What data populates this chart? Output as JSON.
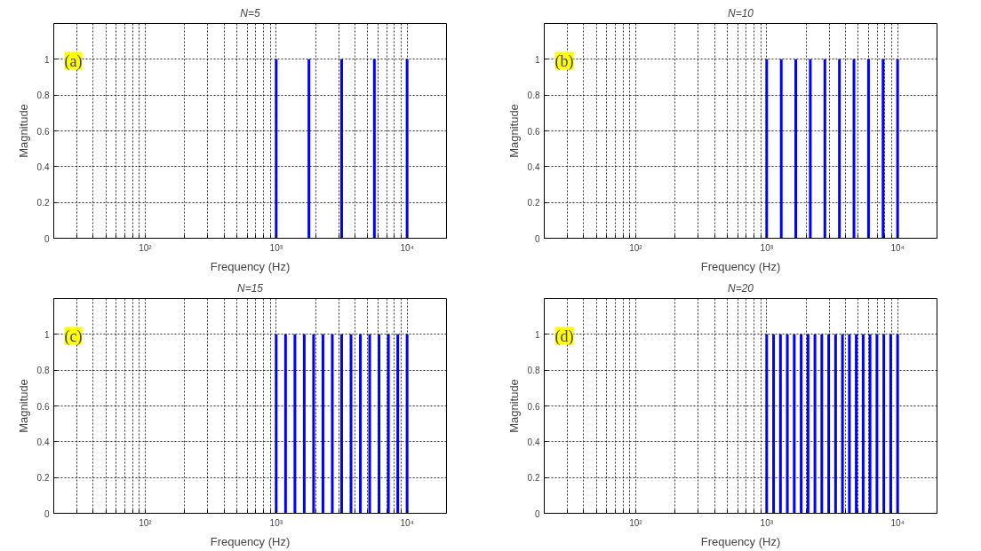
{
  "chart_data": [
    {
      "type": "bar",
      "title": "N=5",
      "xlabel": "Frequency (Hz)",
      "ylabel": "Magnitude",
      "annotations": [
        "(a)"
      ],
      "log": "x",
      "grid": true,
      "xlim": [
        20,
        20000
      ],
      "ylim": [
        0,
        1.2
      ],
      "color": "#0000ff",
      "xticks": [
        {
          "value": 20,
          "label": null
        },
        {
          "value": 30,
          "label": null
        },
        {
          "value": 40,
          "label": null
        },
        {
          "value": 50,
          "label": null
        },
        {
          "value": 60,
          "label": null
        },
        {
          "value": 70,
          "label": null
        },
        {
          "value": 80,
          "label": null
        },
        {
          "value": 90,
          "label": null
        },
        {
          "value": 100,
          "label": "10²"
        },
        {
          "value": 200,
          "label": null
        },
        {
          "value": 300,
          "label": null
        },
        {
          "value": 400,
          "label": null
        },
        {
          "value": 500,
          "label": null
        },
        {
          "value": 600,
          "label": null
        },
        {
          "value": 700,
          "label": null
        },
        {
          "value": 800,
          "label": null
        },
        {
          "value": 900,
          "label": null
        },
        {
          "value": 1000,
          "label": "10³"
        },
        {
          "value": 2000,
          "label": null
        },
        {
          "value": 3000,
          "label": null
        },
        {
          "value": 4000,
          "label": null
        },
        {
          "value": 5000,
          "label": null
        },
        {
          "value": 6000,
          "label": null
        },
        {
          "value": 7000,
          "label": null
        },
        {
          "value": 8000,
          "label": null
        },
        {
          "value": 9000,
          "label": null
        },
        {
          "value": 10000,
          "label": "10⁴"
        }
      ],
      "yticks": [
        0,
        0.2,
        0.4,
        0.6,
        0.8,
        1
      ],
      "x": [
        1000,
        1778,
        3162,
        5623,
        10000
      ],
      "values": [
        1,
        1,
        1,
        1,
        1
      ]
    },
    {
      "type": "bar",
      "title": "N=10",
      "xlabel": "Frequency (Hz)",
      "ylabel": "Magnitude",
      "annotations": [
        "(b)"
      ],
      "log": "x",
      "grid": true,
      "xlim": [
        20,
        20000
      ],
      "ylim": [
        0,
        1.2
      ],
      "color": "#0000ff",
      "xticks": [
        {
          "value": 20,
          "label": null
        },
        {
          "value": 30,
          "label": null
        },
        {
          "value": 40,
          "label": null
        },
        {
          "value": 50,
          "label": null
        },
        {
          "value": 60,
          "label": null
        },
        {
          "value": 70,
          "label": null
        },
        {
          "value": 80,
          "label": null
        },
        {
          "value": 90,
          "label": null
        },
        {
          "value": 100,
          "label": "10²"
        },
        {
          "value": 200,
          "label": null
        },
        {
          "value": 300,
          "label": null
        },
        {
          "value": 400,
          "label": null
        },
        {
          "value": 500,
          "label": null
        },
        {
          "value": 600,
          "label": null
        },
        {
          "value": 700,
          "label": null
        },
        {
          "value": 800,
          "label": null
        },
        {
          "value": 900,
          "label": null
        },
        {
          "value": 1000,
          "label": "10³"
        },
        {
          "value": 2000,
          "label": null
        },
        {
          "value": 3000,
          "label": null
        },
        {
          "value": 4000,
          "label": null
        },
        {
          "value": 5000,
          "label": null
        },
        {
          "value": 6000,
          "label": null
        },
        {
          "value": 7000,
          "label": null
        },
        {
          "value": 8000,
          "label": null
        },
        {
          "value": 9000,
          "label": null
        },
        {
          "value": 10000,
          "label": "10⁴"
        }
      ],
      "yticks": [
        0,
        0.2,
        0.4,
        0.6,
        0.8,
        1
      ],
      "x": [
        1000,
        1292,
        1668,
        2154,
        2783,
        3594,
        4642,
        5995,
        7743,
        10000
      ],
      "values": [
        1,
        1,
        1,
        1,
        1,
        1,
        1,
        1,
        1,
        1
      ]
    },
    {
      "type": "bar",
      "title": "N=15",
      "xlabel": "Frequency (Hz)",
      "ylabel": "Magnitude",
      "annotations": [
        "(c)"
      ],
      "log": "x",
      "grid": true,
      "xlim": [
        20,
        20000
      ],
      "ylim": [
        0,
        1.2
      ],
      "color": "#0000ff",
      "xticks": [
        {
          "value": 20,
          "label": null
        },
        {
          "value": 30,
          "label": null
        },
        {
          "value": 40,
          "label": null
        },
        {
          "value": 50,
          "label": null
        },
        {
          "value": 60,
          "label": null
        },
        {
          "value": 70,
          "label": null
        },
        {
          "value": 80,
          "label": null
        },
        {
          "value": 90,
          "label": null
        },
        {
          "value": 100,
          "label": "10²"
        },
        {
          "value": 200,
          "label": null
        },
        {
          "value": 300,
          "label": null
        },
        {
          "value": 400,
          "label": null
        },
        {
          "value": 500,
          "label": null
        },
        {
          "value": 600,
          "label": null
        },
        {
          "value": 700,
          "label": null
        },
        {
          "value": 800,
          "label": null
        },
        {
          "value": 900,
          "label": null
        },
        {
          "value": 1000,
          "label": "10³"
        },
        {
          "value": 2000,
          "label": null
        },
        {
          "value": 3000,
          "label": null
        },
        {
          "value": 4000,
          "label": null
        },
        {
          "value": 5000,
          "label": null
        },
        {
          "value": 6000,
          "label": null
        },
        {
          "value": 7000,
          "label": null
        },
        {
          "value": 8000,
          "label": null
        },
        {
          "value": 9000,
          "label": null
        },
        {
          "value": 10000,
          "label": "10⁴"
        }
      ],
      "yticks": [
        0,
        0.2,
        0.4,
        0.6,
        0.8,
        1
      ],
      "x": [
        1000,
        1179,
        1390,
        1638,
        1931,
        2276,
        2683,
        3162,
        3728,
        4394,
        5179,
        6105,
        7197,
        8483,
        10000
      ],
      "values": [
        1,
        1,
        1,
        1,
        1,
        1,
        1,
        1,
        1,
        1,
        1,
        1,
        1,
        1,
        1
      ]
    },
    {
      "type": "bar",
      "title": "N=20",
      "xlabel": "Frequency (Hz)",
      "ylabel": "Magnitude",
      "annotations": [
        "(d)"
      ],
      "log": "x",
      "grid": true,
      "xlim": [
        20,
        20000
      ],
      "ylim": [
        0,
        1.2
      ],
      "color": "#0000ff",
      "xticks": [
        {
          "value": 20,
          "label": null
        },
        {
          "value": 30,
          "label": null
        },
        {
          "value": 40,
          "label": null
        },
        {
          "value": 50,
          "label": null
        },
        {
          "value": 60,
          "label": null
        },
        {
          "value": 70,
          "label": null
        },
        {
          "value": 80,
          "label": null
        },
        {
          "value": 90,
          "label": null
        },
        {
          "value": 100,
          "label": "10²"
        },
        {
          "value": 200,
          "label": null
        },
        {
          "value": 300,
          "label": null
        },
        {
          "value": 400,
          "label": null
        },
        {
          "value": 500,
          "label": null
        },
        {
          "value": 600,
          "label": null
        },
        {
          "value": 700,
          "label": null
        },
        {
          "value": 800,
          "label": null
        },
        {
          "value": 900,
          "label": null
        },
        {
          "value": 1000,
          "label": "10³"
        },
        {
          "value": 2000,
          "label": null
        },
        {
          "value": 3000,
          "label": null
        },
        {
          "value": 4000,
          "label": null
        },
        {
          "value": 5000,
          "label": null
        },
        {
          "value": 6000,
          "label": null
        },
        {
          "value": 7000,
          "label": null
        },
        {
          "value": 8000,
          "label": null
        },
        {
          "value": 9000,
          "label": null
        },
        {
          "value": 10000,
          "label": "10⁴"
        }
      ],
      "yticks": [
        0,
        0.2,
        0.4,
        0.6,
        0.8,
        1
      ],
      "x": [
        1000,
        1129,
        1274,
        1438,
        1624,
        1833,
        2069,
        2336,
        2637,
        2976,
        3360,
        3793,
        4281,
        4833,
        5456,
        6158,
        6952,
        7848,
        8859,
        10000
      ],
      "values": [
        1,
        1,
        1,
        1,
        1,
        1,
        1,
        1,
        1,
        1,
        1,
        1,
        1,
        1,
        1,
        1,
        1,
        1,
        1,
        1
      ]
    }
  ]
}
